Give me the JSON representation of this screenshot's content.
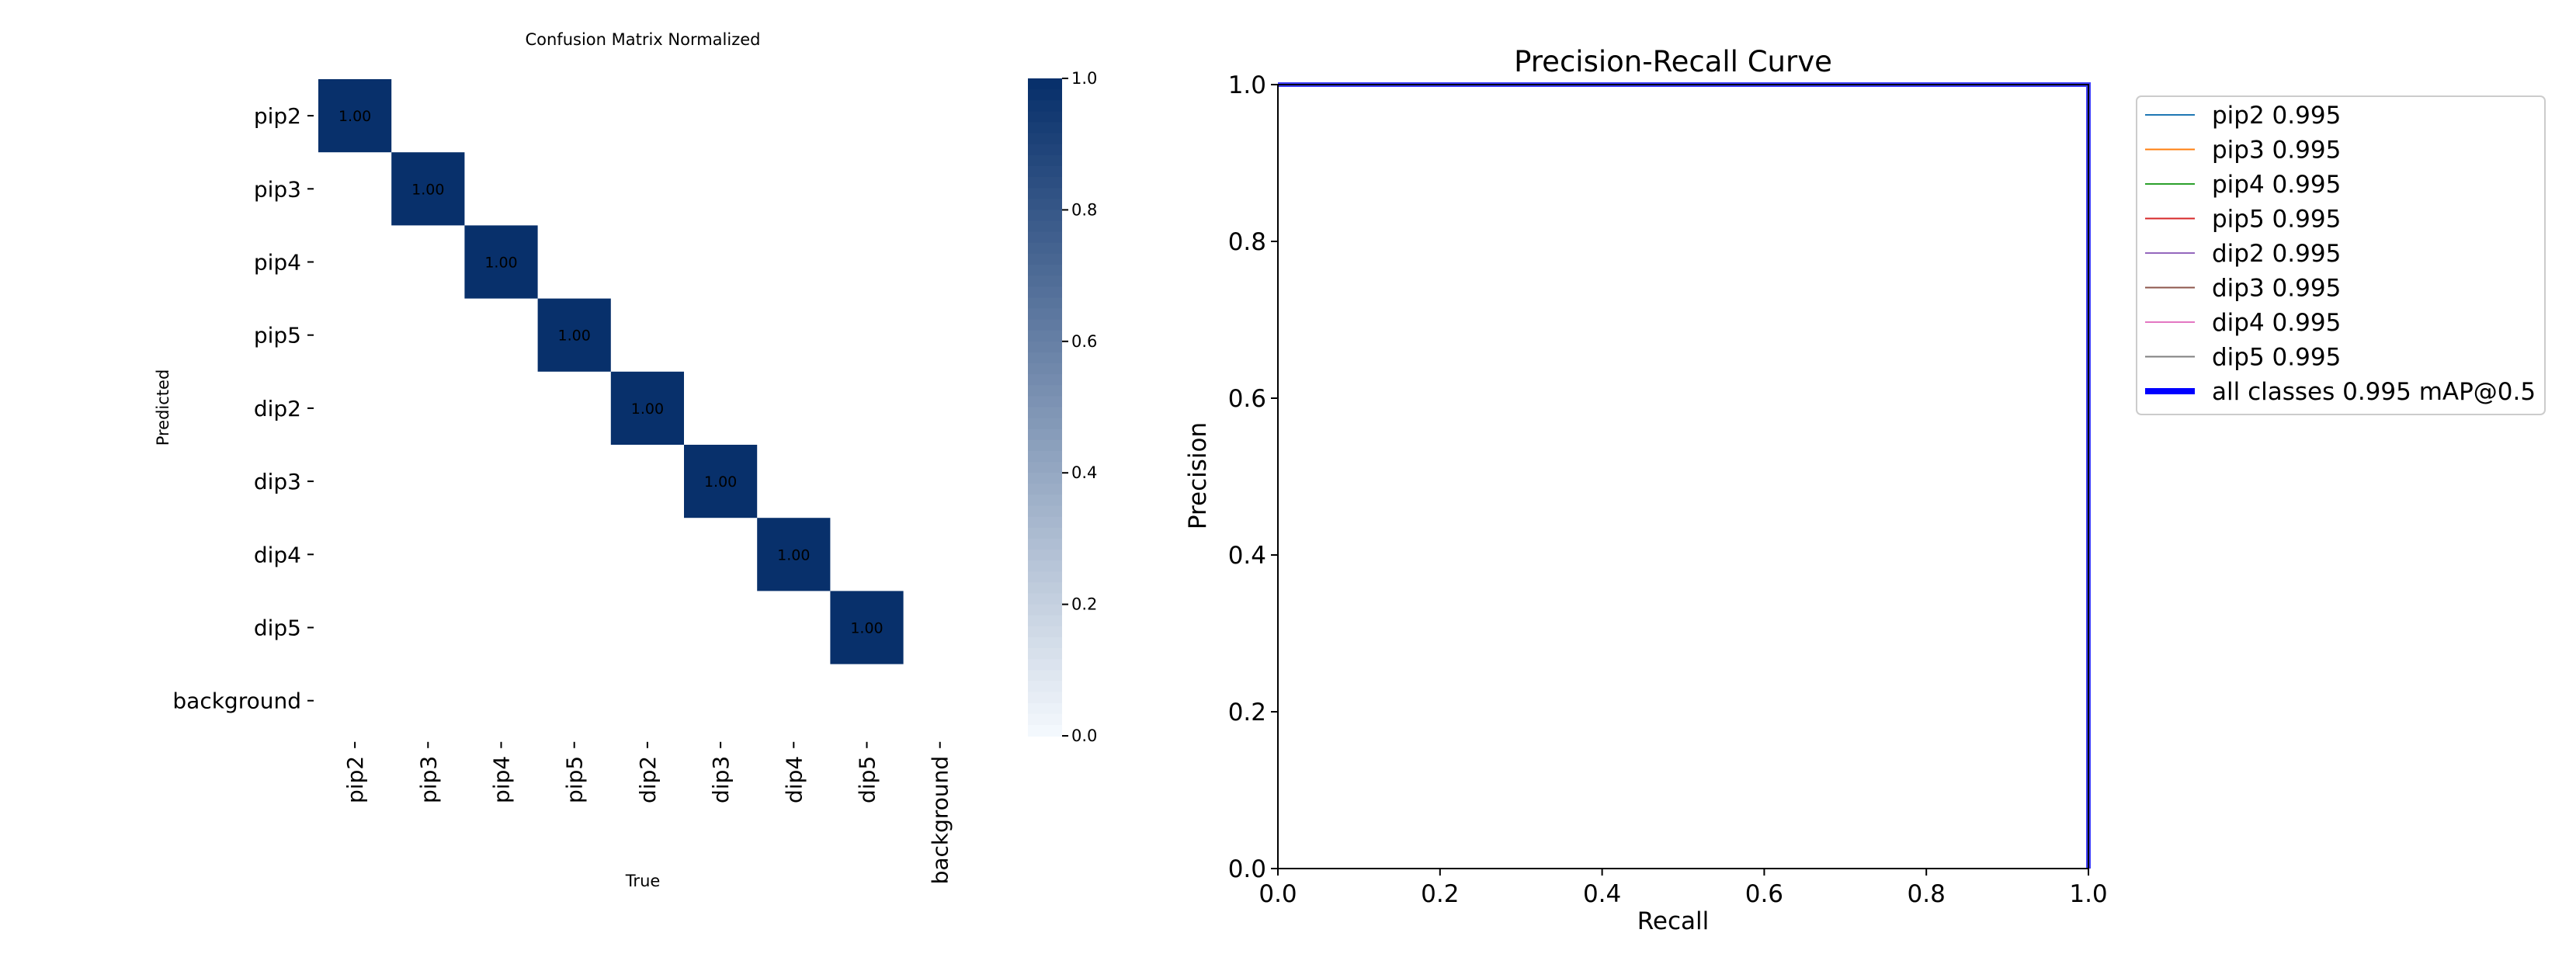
{
  "chart_data": [
    {
      "type": "heatmap",
      "title": "Confusion Matrix Normalized",
      "xlabel": "True",
      "ylabel": "Predicted",
      "x_categories": [
        "pip2",
        "pip3",
        "pip4",
        "pip5",
        "dip2",
        "dip3",
        "dip4",
        "dip5",
        "background"
      ],
      "y_categories": [
        "pip2",
        "pip3",
        "pip4",
        "pip5",
        "dip2",
        "dip3",
        "dip4",
        "dip5",
        "background"
      ],
      "cells": [
        {
          "row": 0,
          "col": 0,
          "value": 1.0,
          "label": "1.00"
        },
        {
          "row": 1,
          "col": 1,
          "value": 1.0,
          "label": "1.00"
        },
        {
          "row": 2,
          "col": 2,
          "value": 1.0,
          "label": "1.00"
        },
        {
          "row": 3,
          "col": 3,
          "value": 1.0,
          "label": "1.00"
        },
        {
          "row": 4,
          "col": 4,
          "value": 1.0,
          "label": "1.00"
        },
        {
          "row": 5,
          "col": 5,
          "value": 1.0,
          "label": "1.00"
        },
        {
          "row": 6,
          "col": 6,
          "value": 1.0,
          "label": "1.00"
        },
        {
          "row": 7,
          "col": 7,
          "value": 1.0,
          "label": "1.00"
        }
      ],
      "colorbar": {
        "range": [
          0.0,
          1.0
        ],
        "ticks": [
          "0.0",
          "0.2",
          "0.4",
          "0.6",
          "0.8",
          "1.0"
        ],
        "colormap": "Blues",
        "low_color": "#f7fbff",
        "high_color": "#08306b"
      }
    },
    {
      "type": "line",
      "title": "Precision-Recall Curve",
      "xlabel": "Recall",
      "ylabel": "Precision",
      "xlim": [
        0.0,
        1.0
      ],
      "ylim": [
        0.0,
        1.0
      ],
      "xticks": [
        "0.0",
        "0.2",
        "0.4",
        "0.6",
        "0.8",
        "1.0"
      ],
      "yticks": [
        "0.0",
        "0.2",
        "0.4",
        "0.6",
        "0.8",
        "1.0"
      ],
      "grid": false,
      "legend_position": "outside-right-top",
      "series": [
        {
          "name": "pip2 0.995",
          "color": "#1f77b4",
          "x": [
            0.0,
            1.0,
            1.0
          ],
          "y": [
            1.0,
            1.0,
            0.0
          ]
        },
        {
          "name": "pip3 0.995",
          "color": "#ff7f0e",
          "x": [
            0.0,
            1.0,
            1.0
          ],
          "y": [
            1.0,
            1.0,
            0.0
          ]
        },
        {
          "name": "pip4 0.995",
          "color": "#2ca02c",
          "x": [
            0.0,
            1.0,
            1.0
          ],
          "y": [
            1.0,
            1.0,
            0.0
          ]
        },
        {
          "name": "pip5 0.995",
          "color": "#d62728",
          "x": [
            0.0,
            1.0,
            1.0
          ],
          "y": [
            1.0,
            1.0,
            0.0
          ]
        },
        {
          "name": "dip2 0.995",
          "color": "#9467bd",
          "x": [
            0.0,
            1.0,
            1.0
          ],
          "y": [
            1.0,
            1.0,
            0.0
          ]
        },
        {
          "name": "dip3 0.995",
          "color": "#8c564b",
          "x": [
            0.0,
            1.0,
            1.0
          ],
          "y": [
            1.0,
            1.0,
            0.0
          ]
        },
        {
          "name": "dip4 0.995",
          "color": "#e377c2",
          "x": [
            0.0,
            1.0,
            1.0
          ],
          "y": [
            1.0,
            1.0,
            0.0
          ]
        },
        {
          "name": "dip5 0.995",
          "color": "#7f7f7f",
          "x": [
            0.0,
            1.0,
            1.0
          ],
          "y": [
            1.0,
            1.0,
            0.0
          ]
        },
        {
          "name": "all classes 0.995 mAP@0.5",
          "color": "#0000ff",
          "x": [
            0.0,
            1.0,
            1.0
          ],
          "y": [
            1.0,
            1.0,
            0.0
          ],
          "bold": true
        }
      ]
    }
  ]
}
